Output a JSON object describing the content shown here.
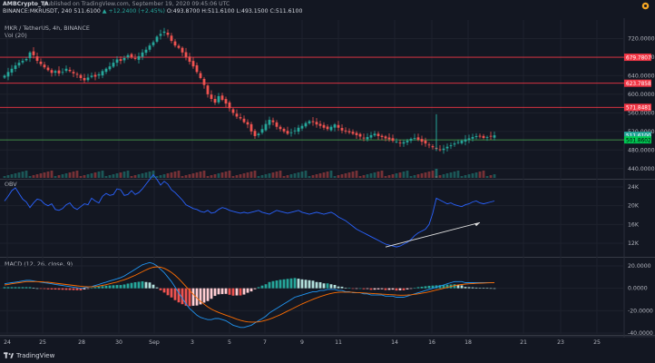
{
  "header": {
    "author": "AMBCrypto_TA",
    "published": "published on TradingView.com, September 19, 2020 09:45:06 UTC",
    "symbol": "BINANCE:MKRUSDT, 240",
    "last": "511.6100",
    "change": "▲ +12.2400 (+2.45%)",
    "ohlc": "O:493.8700 H:511.6100 L:493.1500 C:511.6100"
  },
  "panes": {
    "price_label": "MKR / TetherUS, 4h, BINANCE",
    "vol_label": "Vol (20)",
    "obv_label": "OBV",
    "macd_label": "MACD (12, 26, close, 9)"
  },
  "brand": {
    "name": "TradingView"
  },
  "colors": {
    "background": "#131722",
    "bull": "#26a69a",
    "bear": "#ef5350",
    "resistance": "#f23645",
    "support": "#4caf50",
    "obv": "#2962ff",
    "macd": "#2196f3",
    "signal": "#ff6d00",
    "grid": "#1e222d",
    "axis_text": "#b2b5be"
  },
  "chart_data": [
    {
      "type": "candlestick",
      "title": "MKR / TetherUS, 4h, BINANCE",
      "x_ticks": [
        "24",
        "25",
        "28",
        "30",
        "Sep",
        "3",
        "5",
        "7",
        "9",
        "11",
        "14",
        "16",
        "18",
        "21",
        "23",
        "25"
      ],
      "y_ticks": [
        720.0,
        680.0,
        640.0,
        600.0,
        560.0,
        520.0,
        480.0,
        440.0
      ],
      "ylim": [
        420,
        760
      ],
      "levels": [
        {
          "label": "679.7807",
          "value": 679.7807,
          "kind": "resistance"
        },
        {
          "label": "623.7858",
          "value": 623.7858,
          "kind": "resistance"
        },
        {
          "label": "571.8481",
          "value": 571.8481,
          "kind": "resistance"
        },
        {
          "label": "511.6100",
          "value": 511.61,
          "kind": "last"
        },
        {
          "label": "501.8602",
          "value": 501.8602,
          "kind": "support"
        }
      ],
      "closes": [
        640,
        648,
        655,
        662,
        668,
        672,
        676,
        690,
        684,
        672,
        665,
        658,
        652,
        646,
        650,
        645,
        648,
        655,
        650,
        645,
        642,
        635,
        630,
        636,
        640,
        638,
        643,
        650,
        655,
        660,
        668,
        675,
        672,
        678,
        684,
        680,
        676,
        682,
        690,
        696,
        705,
        712,
        724,
        730,
        735,
        728,
        715,
        705,
        700,
        690,
        680,
        670,
        660,
        648,
        635,
        620,
        600,
        590,
        582,
        596,
        588,
        580,
        570,
        560,
        552,
        548,
        540,
        535,
        520,
        510,
        515,
        525,
        536,
        545,
        540,
        530,
        525,
        520,
        515,
        518,
        522,
        528,
        532,
        538,
        542,
        540,
        535,
        532,
        528,
        525,
        530,
        535,
        528,
        522,
        520,
        518,
        515,
        512,
        509,
        505,
        508,
        512,
        515,
        510,
        508,
        505,
        503,
        500,
        498,
        495,
        497,
        500,
        504,
        506,
        502,
        498,
        494,
        490,
        486,
        482,
        480,
        483,
        487,
        490,
        494,
        497,
        500,
        503,
        505,
        508,
        510,
        509,
        506,
        508,
        509,
        511.61
      ]
    },
    {
      "type": "line",
      "title": "OBV",
      "y_ticks": [
        "24K",
        "20K",
        "16K",
        "12K"
      ],
      "values_k": [
        21.0,
        22.0,
        23.2,
        23.8,
        22.6,
        21.4,
        20.8,
        19.6,
        20.6,
        21.4,
        21.2,
        20.4,
        20.0,
        20.4,
        19.2,
        19.0,
        19.4,
        20.2,
        20.6,
        19.6,
        19.2,
        19.8,
        20.4,
        20.2,
        21.6,
        21.0,
        20.6,
        22.0,
        22.6,
        22.2,
        22.4,
        23.6,
        23.4,
        22.2,
        22.4,
        23.2,
        22.4,
        22.8,
        23.6,
        24.6,
        25.6,
        26.6,
        25.6,
        24.4,
        25.2,
        24.6,
        23.4,
        22.8,
        22.0,
        21.2,
        20.2,
        19.8,
        19.4,
        19.2,
        18.8,
        18.6,
        19.0,
        18.4,
        18.6,
        19.2,
        19.6,
        19.4,
        19.0,
        18.8,
        18.6,
        18.4,
        18.6,
        18.4,
        18.6,
        18.8,
        19.0,
        18.6,
        18.4,
        18.2,
        18.6,
        19.0,
        18.8,
        18.6,
        18.4,
        18.6,
        18.8,
        19.0,
        18.6,
        18.4,
        18.2,
        18.4,
        18.6,
        18.4,
        18.2,
        18.4,
        18.6,
        18.2,
        17.6,
        17.2,
        16.8,
        16.2,
        15.6,
        15.0,
        14.6,
        14.2,
        13.8,
        13.4,
        13.0,
        12.6,
        12.2,
        11.8,
        11.6,
        11.4,
        11.2,
        11.4,
        11.8,
        12.2,
        12.8,
        13.6,
        14.2,
        14.6,
        15.0,
        16.0,
        18.4,
        21.6,
        21.2,
        20.8,
        20.4,
        20.6,
        20.2,
        20.0,
        19.8,
        20.2,
        20.4,
        20.8,
        21.0,
        20.6,
        20.4,
        20.6,
        20.8,
        21.0
      ],
      "trendline": [
        [
          105,
          11.2
        ],
        [
          131,
          16.4
        ]
      ]
    },
    {
      "type": "macd",
      "title": "MACD (12, 26, close, 9)",
      "y_ticks": [
        20.0,
        0.0,
        -20.0,
        -40.0
      ],
      "ylim": [
        -45,
        28
      ],
      "macd": [
        4,
        4.5,
        5,
        5.5,
        6,
        6.5,
        7,
        7,
        6.5,
        6,
        5.5,
        5,
        4.5,
        4,
        3.5,
        3,
        2.5,
        2,
        1.5,
        1,
        0.5,
        0,
        0.5,
        1,
        1.5,
        2.5,
        3.5,
        4.5,
        5.5,
        6.5,
        7.5,
        8.5,
        9.5,
        11,
        13,
        15,
        17,
        19,
        21,
        22,
        23,
        22,
        20,
        17,
        14,
        10,
        6,
        1,
        -4,
        -9,
        -14,
        -18,
        -21,
        -24,
        -26,
        -27,
        -28,
        -28,
        -27,
        -27,
        -28,
        -29,
        -31,
        -33,
        -34,
        -35,
        -35,
        -34,
        -33,
        -31,
        -29,
        -27,
        -25,
        -22,
        -20,
        -18,
        -16,
        -14,
        -12,
        -10,
        -8,
        -7,
        -6,
        -5,
        -4,
        -3,
        -3,
        -2,
        -2,
        -1,
        -1,
        -1,
        -2,
        -2,
        -3,
        -3,
        -4,
        -4,
        -4,
        -5,
        -5,
        -6,
        -6,
        -6,
        -6,
        -7,
        -7,
        -7,
        -8,
        -8,
        -8,
        -7,
        -6,
        -5,
        -4,
        -3,
        -2,
        -1,
        0,
        1,
        2,
        3,
        4,
        5,
        6,
        6,
        6,
        5,
        5,
        5,
        5,
        5,
        5,
        5,
        5,
        5
      ],
      "signal": [
        3,
        3.5,
        4,
        4.5,
        5,
        5.5,
        6,
        6,
        6,
        6,
        5.8,
        5.6,
        5.4,
        5,
        4.6,
        4.2,
        3.8,
        3.4,
        3,
        2.6,
        2.2,
        1.8,
        1.5,
        1.3,
        1.3,
        1.5,
        2,
        2.6,
        3.2,
        4,
        4.8,
        5.6,
        6.6,
        7.6,
        8.8,
        10.2,
        11.6,
        13.2,
        14.8,
        16.4,
        17.8,
        18.8,
        19.2,
        18.8,
        17.8,
        16.2,
        14.2,
        11.6,
        8.6,
        5.2,
        1.6,
        -2,
        -5.4,
        -8.6,
        -11.6,
        -14.2,
        -16.6,
        -18.6,
        -20.2,
        -21.6,
        -22.8,
        -24,
        -25.2,
        -26.4,
        -27.6,
        -28.6,
        -29.4,
        -30,
        -30.2,
        -30.2,
        -30,
        -29.4,
        -28.6,
        -27.6,
        -26.4,
        -25,
        -23.6,
        -22,
        -20.4,
        -18.8,
        -17.2,
        -15.6,
        -14,
        -12.6,
        -11.2,
        -9.8,
        -8.6,
        -7.4,
        -6.4,
        -5.4,
        -4.6,
        -4,
        -3.6,
        -3.4,
        -3.4,
        -3.4,
        -3.6,
        -3.8,
        -4,
        -4.2,
        -4.4,
        -4.6,
        -4.8,
        -5,
        -5.2,
        -5.4,
        -5.6,
        -5.8,
        -6,
        -6.2,
        -6.2,
        -6,
        -5.8,
        -5.4,
        -5,
        -4.4,
        -3.8,
        -3.2,
        -2.4,
        -1.6,
        -0.8,
        0,
        0.8,
        1.6,
        2.4,
        3,
        3.4,
        3.8,
        4,
        4.2,
        4.4,
        4.6,
        4.7,
        4.8,
        4.9,
        5
      ]
    }
  ],
  "time_axis": [
    "24",
    "25",
    "28",
    "30",
    "Sep",
    "3",
    "5",
    "7",
    "9",
    "11",
    "14",
    "16",
    "18",
    "21",
    "23",
    "25"
  ]
}
